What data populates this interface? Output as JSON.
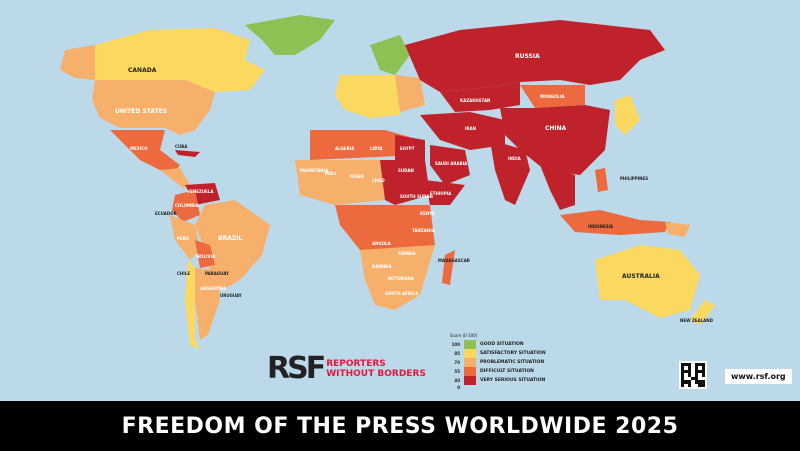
{
  "title": "FREEDOM OF THE PRESS WORLDWIDE 2025",
  "logo": {
    "mark": "RSF",
    "line1": "REPORTERS",
    "line2": "WITHOUT BORDERS"
  },
  "website": "www.rsf.org",
  "legend": {
    "title": "Score (0-100)",
    "ticks": [
      "100",
      "85",
      "70",
      "55",
      "40",
      "0"
    ],
    "items": [
      {
        "label": "GOOD SITUATION",
        "color": "#8dc154"
      },
      {
        "label": "SATISFACTORY SITUATION",
        "color": "#fbd961"
      },
      {
        "label": "PROBLEMATIC SITUATION",
        "color": "#f7b06c"
      },
      {
        "label": "DIFFICULT SITUATION",
        "color": "#ec6a3d"
      },
      {
        "label": "VERY SERIOUS SITUATION",
        "color": "#bf222a"
      }
    ]
  },
  "countries": {
    "canada": "CANADA",
    "usa": "UNITED STATES",
    "mexico": "MEXICO",
    "cuba": "CUBA",
    "venezuela": "VENEZUELA",
    "colombia": "COLOMBIA",
    "ecuador": "ECUADOR",
    "peru": "PERU",
    "brazil": "BRAZIL",
    "bolivia": "BOLIVIA",
    "paraguay": "PARAGUAY",
    "chile": "CHILE",
    "argentina": "ARGENTINA",
    "uruguay": "URUGUAY",
    "russia": "RUSSIA",
    "kazakhstan": "KAZAKHSTAN",
    "mongolia": "MONGOLIA",
    "china": "CHINA",
    "india": "INDIA",
    "iran": "IRAN",
    "saudi": "SAUDI ARABIA",
    "algeria": "ALGERIA",
    "libya": "LIBYA",
    "egypt": "EGYPT",
    "mauritania": "MAURITANIA",
    "mali": "MALI",
    "niger": "NIGER",
    "chad": "CHAD",
    "sudan": "SUDAN",
    "southsudan": "SOUTH SUDAN",
    "ethiopia": "ETHIOPIA",
    "kenya": "KENYA",
    "tanzania": "TANZANIA",
    "angola": "ANGOLA",
    "zambia": "ZAMBIA",
    "namibia": "NAMIBIA",
    "botswana": "BOTSWANA",
    "southafrica": "SOUTH AFRICA",
    "madagascar": "MADAGASCAR",
    "philippines": "PHILIPPINES",
    "indonesia": "INDONESIA",
    "australia": "AUSTRALIA",
    "newzealand": "NEW ZEALAND"
  }
}
